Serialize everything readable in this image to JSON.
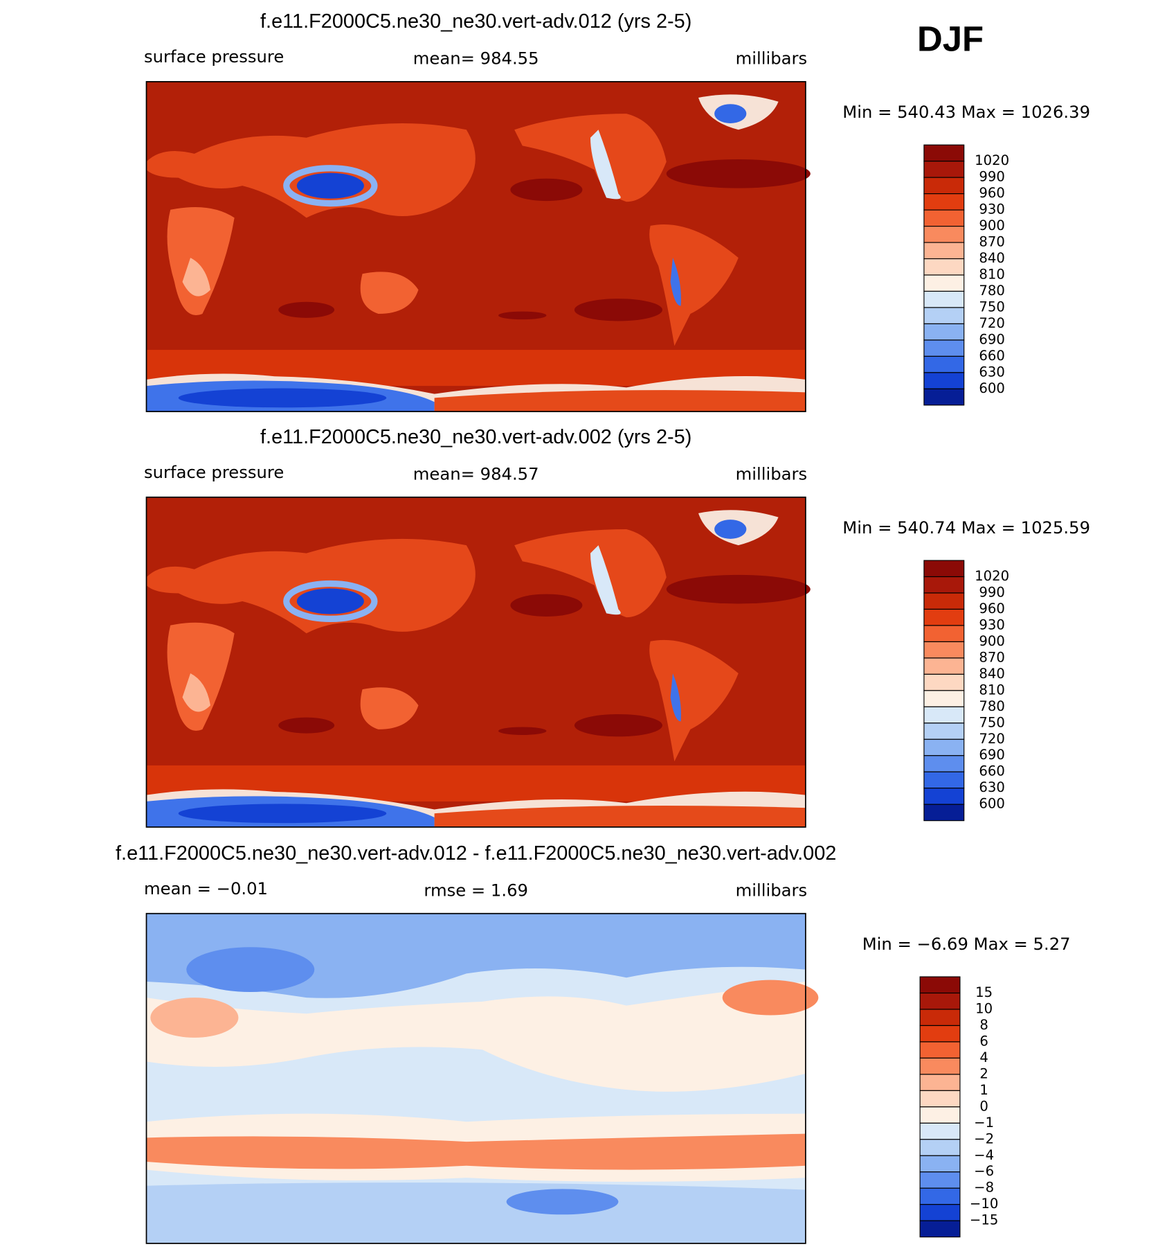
{
  "header": {
    "season": "DJF"
  },
  "panels": [
    {
      "title": "f.e11.F2000C5.ne30_ne30.vert-adv.012 (yrs 2-5)",
      "left": "surface pressure",
      "center": "mean= 984.55",
      "right": "millibars",
      "minmax": "Min = 540.43 Max = 1026.39",
      "colorbar": {
        "labels": [
          "1020",
          "990",
          "960",
          "930",
          "900",
          "870",
          "840",
          "810",
          "780",
          "750",
          "720",
          "690",
          "660",
          "630",
          "600"
        ],
        "colors": [
          "#8B0A06",
          "#A8180A",
          "#C92A08",
          "#E23D10",
          "#F26232",
          "#F98A5E",
          "#FCB493",
          "#FDD8C2",
          "#FDF0E4",
          "#D8E8F8",
          "#B4D0F5",
          "#8AB2F2",
          "#5E8EEE",
          "#3368E6",
          "#1442D4",
          "#061E96"
        ]
      }
    },
    {
      "title": "f.e11.F2000C5.ne30_ne30.vert-adv.002 (yrs 2-5)",
      "left": "surface pressure",
      "center": "mean= 984.57",
      "right": "millibars",
      "minmax": "Min = 540.74 Max = 1025.59",
      "colorbar": {
        "labels": [
          "1020",
          "990",
          "960",
          "930",
          "900",
          "870",
          "840",
          "810",
          "780",
          "750",
          "720",
          "690",
          "660",
          "630",
          "600"
        ],
        "colors": [
          "#8B0A06",
          "#A8180A",
          "#C92A08",
          "#E23D10",
          "#F26232",
          "#F98A5E",
          "#FCB493",
          "#FDD8C2",
          "#FDF0E4",
          "#D8E8F8",
          "#B4D0F5",
          "#8AB2F2",
          "#5E8EEE",
          "#3368E6",
          "#1442D4",
          "#061E96"
        ]
      }
    },
    {
      "title": "f.e11.F2000C5.ne30_ne30.vert-adv.012 - f.e11.F2000C5.ne30_ne30.vert-adv.002",
      "left": "mean =   −0.01",
      "center": "rmse =     1.69",
      "right": "millibars",
      "minmax": "Min =   −6.69 Max =     5.27",
      "colorbar": {
        "labels": [
          "15",
          "10",
          "8",
          "6",
          "4",
          "2",
          "1",
          "0",
          "−1",
          "−2",
          "−4",
          "−6",
          "−8",
          "−10",
          "−15"
        ],
        "colors": [
          "#8B0A06",
          "#A8180A",
          "#C92A08",
          "#E23D10",
          "#F26232",
          "#F98A5E",
          "#FCB493",
          "#FDD8C2",
          "#FDF0E4",
          "#D8E8F8",
          "#B4D0F5",
          "#8AB2F2",
          "#5E8EEE",
          "#3368E6",
          "#1442D4",
          "#061E96"
        ]
      }
    }
  ]
}
